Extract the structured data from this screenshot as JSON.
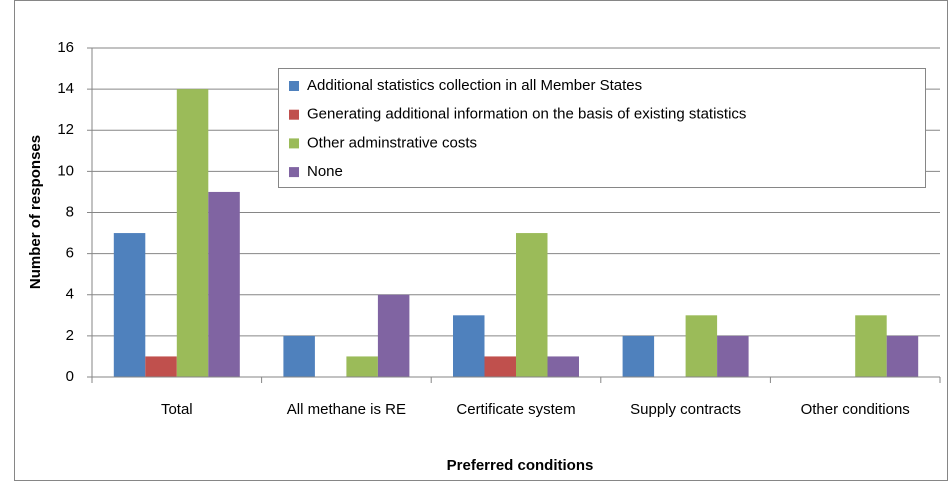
{
  "chart_data": {
    "type": "bar",
    "x_label": "Preferred conditions",
    "y_label": "Number of responses",
    "categories": [
      "Total",
      "All methane is RE",
      "Certificate system",
      "Supply contracts",
      "Other conditions"
    ],
    "series": [
      {
        "name": "Additional statistics collection in all Member States",
        "color": "#4f81bd",
        "values": [
          7,
          2,
          3,
          2,
          0
        ]
      },
      {
        "name": "Generating additional information on the basis of existing statistics",
        "color": "#c0504d",
        "values": [
          1,
          0,
          1,
          0,
          0
        ]
      },
      {
        "name": "Other adminstrative costs",
        "color": "#9bbb59",
        "values": [
          14,
          1,
          7,
          3,
          3
        ]
      },
      {
        "name": "None",
        "color": "#8064a2",
        "values": [
          9,
          4,
          1,
          2,
          2
        ]
      }
    ],
    "ylim": [
      0,
      16
    ],
    "yticks": [
      0,
      2,
      4,
      6,
      8,
      10,
      12,
      14,
      16
    ],
    "grid": true,
    "legend": "top-right"
  }
}
